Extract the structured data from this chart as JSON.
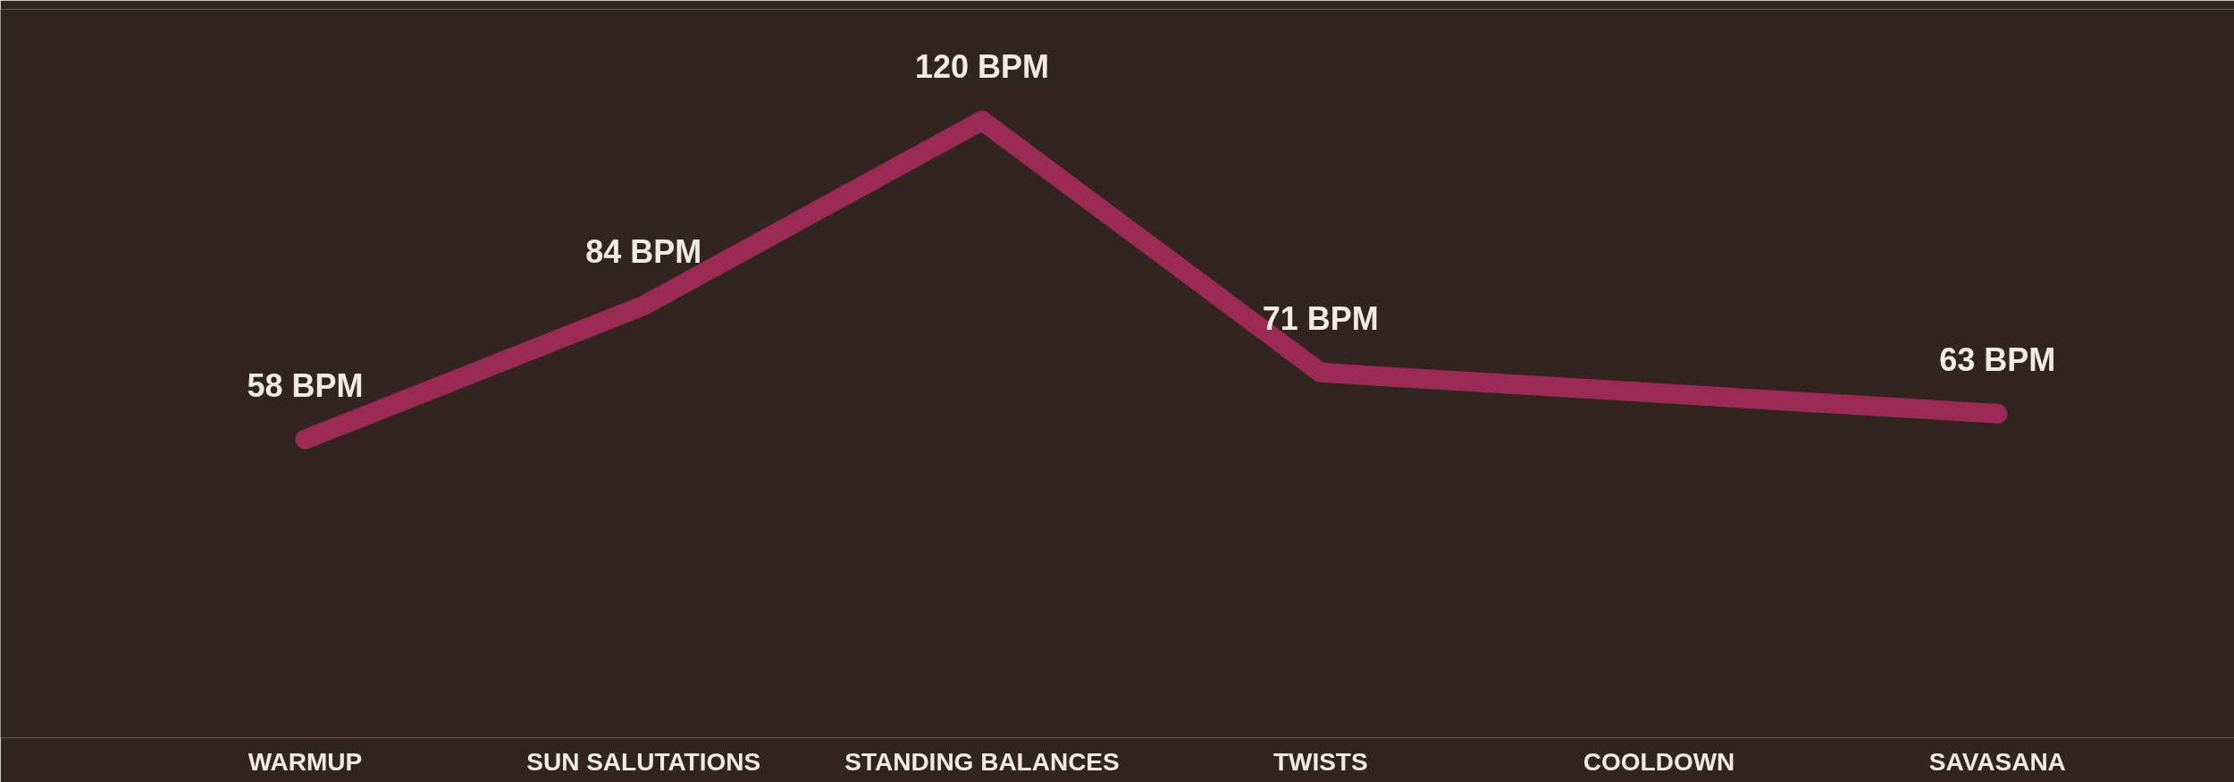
{
  "chart_data": {
    "type": "line",
    "categories": [
      "WARMUP",
      "SUN SALUTATIONS",
      "STANDING BALANCES",
      "TWISTS",
      "COOLDOWN",
      "SAVASANA"
    ],
    "series": [
      {
        "color": "#9b2a55",
        "values": [
          58,
          84,
          120,
          71,
          null,
          63
        ],
        "value_labels": [
          "58 BPM",
          "84 BPM",
          "120 BPM",
          "71 BPM",
          null,
          "63 BPM"
        ]
      }
    ],
    "marker": "none",
    "line_style": "solid",
    "grid": false,
    "tick_labels": "x"
  }
}
